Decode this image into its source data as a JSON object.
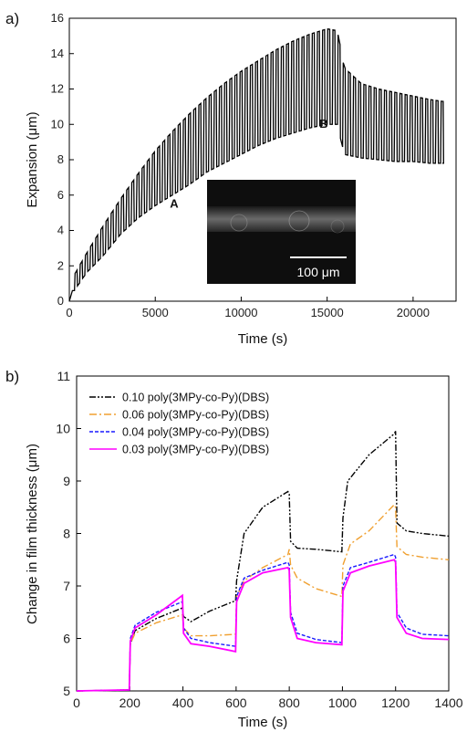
{
  "chart_data": [
    {
      "panel_label": "a)",
      "type": "line",
      "xlabel": "Time (s)",
      "ylabel": "Expansion (μm)",
      "xlim": [
        0,
        22500
      ],
      "ylim": [
        0,
        16
      ],
      "xticks": [
        0,
        5000,
        10000,
        15000,
        20000
      ],
      "yticks": [
        0,
        2,
        4,
        6,
        8,
        10,
        12,
        14,
        16
      ],
      "grid": false,
      "annotations": [
        {
          "text": "A",
          "x": 6100,
          "y": 5.3
        },
        {
          "text": "B",
          "x": 14800,
          "y": 9.8
        }
      ],
      "inset": {
        "scale_bar_label": "100 μm"
      },
      "series": [
        {
          "cycle_period": 300,
          "upper_envelope": [
            [
              300,
              1.5
            ],
            [
              1000,
              2.7
            ],
            [
              2000,
              4.3
            ],
            [
              3000,
              5.8
            ],
            [
              4000,
              7.2
            ],
            [
              5000,
              8.5
            ],
            [
              6000,
              9.6
            ],
            [
              7000,
              10.6
            ],
            [
              8000,
              11.5
            ],
            [
              9000,
              12.3
            ],
            [
              10000,
              13.0
            ],
            [
              11000,
              13.6
            ],
            [
              12000,
              14.2
            ],
            [
              13000,
              14.7
            ],
            [
              14000,
              15.1
            ],
            [
              15000,
              15.4
            ],
            [
              15600,
              15.3
            ],
            [
              16000,
              13.2
            ],
            [
              17000,
              12.3
            ],
            [
              18000,
              12.0
            ],
            [
              19000,
              11.8
            ],
            [
              20000,
              11.6
            ],
            [
              21000,
              11.4
            ],
            [
              21700,
              11.3
            ]
          ],
          "lower_envelope": [
            [
              300,
              0.6
            ],
            [
              1000,
              1.6
            ],
            [
              2000,
              2.6
            ],
            [
              3000,
              3.8
            ],
            [
              4000,
              4.7
            ],
            [
              5000,
              5.4
            ],
            [
              6000,
              6.0
            ],
            [
              7000,
              6.6
            ],
            [
              8000,
              7.3
            ],
            [
              9000,
              7.8
            ],
            [
              10000,
              8.3
            ],
            [
              11000,
              8.8
            ],
            [
              12000,
              9.2
            ],
            [
              13000,
              9.5
            ],
            [
              14000,
              9.8
            ],
            [
              15000,
              10.0
            ],
            [
              15600,
              10.0
            ],
            [
              16000,
              8.3
            ],
            [
              17000,
              8.1
            ],
            [
              18000,
              8.0
            ],
            [
              19000,
              7.9
            ],
            [
              20000,
              7.9
            ],
            [
              21000,
              7.8
            ],
            [
              21700,
              7.8
            ]
          ]
        }
      ]
    },
    {
      "panel_label": "b)",
      "type": "line",
      "xlabel": "Time (s)",
      "ylabel": "Change in film thickness (μm)",
      "xlim": [
        0,
        1400
      ],
      "ylim": [
        5,
        11
      ],
      "xticks": [
        0,
        200,
        400,
        600,
        800,
        1000,
        1200,
        1400
      ],
      "yticks": [
        5,
        6,
        7,
        8,
        9,
        10,
        11
      ],
      "grid": false,
      "legend": "top-left",
      "series": [
        {
          "name": "0.10 poly(3MPy-co-Py)(DBS)",
          "color": "#000000",
          "dash": "dashdot",
          "points": [
            [
              0,
              5.0
            ],
            [
              198,
              5.02
            ],
            [
              202,
              5.9
            ],
            [
              220,
              6.15
            ],
            [
              300,
              6.38
            ],
            [
              398,
              6.58
            ],
            [
              402,
              6.42
            ],
            [
              430,
              6.32
            ],
            [
              500,
              6.52
            ],
            [
              598,
              6.72
            ],
            [
              602,
              7.1
            ],
            [
              630,
              8.0
            ],
            [
              700,
              8.5
            ],
            [
              795,
              8.8
            ],
            [
              800,
              8.75
            ],
            [
              805,
              7.85
            ],
            [
              830,
              7.72
            ],
            [
              900,
              7.7
            ],
            [
              998,
              7.65
            ],
            [
              1002,
              8.3
            ],
            [
              1020,
              9.0
            ],
            [
              1100,
              9.5
            ],
            [
              1195,
              9.9
            ],
            [
              1200,
              9.95
            ],
            [
              1205,
              8.2
            ],
            [
              1240,
              8.05
            ],
            [
              1300,
              8.0
            ],
            [
              1400,
              7.95
            ]
          ]
        },
        {
          "name": "0.06 poly(3MPy-co-Py)(DBS)",
          "color": "#f0a030",
          "dash": "dashdotlong",
          "points": [
            [
              0,
              5.0
            ],
            [
              198,
              5.02
            ],
            [
              202,
              5.9
            ],
            [
              220,
              6.1
            ],
            [
              300,
              6.3
            ],
            [
              398,
              6.45
            ],
            [
              402,
              6.2
            ],
            [
              430,
              6.05
            ],
            [
              500,
              6.05
            ],
            [
              598,
              6.08
            ],
            [
              602,
              6.8
            ],
            [
              630,
              7.1
            ],
            [
              700,
              7.35
            ],
            [
              795,
              7.6
            ],
            [
              800,
              7.7
            ],
            [
              805,
              7.4
            ],
            [
              830,
              7.15
            ],
            [
              900,
              6.95
            ],
            [
              998,
              6.8
            ],
            [
              1002,
              7.4
            ],
            [
              1030,
              7.8
            ],
            [
              1100,
              8.05
            ],
            [
              1195,
              8.55
            ],
            [
              1200,
              8.5
            ],
            [
              1205,
              7.75
            ],
            [
              1240,
              7.6
            ],
            [
              1300,
              7.55
            ],
            [
              1400,
              7.5
            ]
          ]
        },
        {
          "name": "0.04 poly(3MPy-co-Py)(DBS)",
          "color": "#1a1aff",
          "dash": "dash",
          "points": [
            [
              0,
              5.0
            ],
            [
              198,
              5.02
            ],
            [
              202,
              6.0
            ],
            [
              220,
              6.25
            ],
            [
              300,
              6.5
            ],
            [
              398,
              6.7
            ],
            [
              402,
              6.2
            ],
            [
              430,
              6.0
            ],
            [
              500,
              5.92
            ],
            [
              598,
              5.85
            ],
            [
              602,
              6.8
            ],
            [
              630,
              7.15
            ],
            [
              700,
              7.3
            ],
            [
              795,
              7.45
            ],
            [
              800,
              7.4
            ],
            [
              805,
              6.5
            ],
            [
              830,
              6.1
            ],
            [
              900,
              5.98
            ],
            [
              998,
              5.92
            ],
            [
              1002,
              7.0
            ],
            [
              1030,
              7.35
            ],
            [
              1100,
              7.45
            ],
            [
              1195,
              7.6
            ],
            [
              1200,
              7.55
            ],
            [
              1205,
              6.5
            ],
            [
              1240,
              6.2
            ],
            [
              1300,
              6.08
            ],
            [
              1400,
              6.05
            ]
          ]
        },
        {
          "name": "0.03 poly(3MPy-co-Py)(DBS)",
          "color": "#ff00ff",
          "dash": "solid",
          "points": [
            [
              0,
              5.0
            ],
            [
              198,
              5.02
            ],
            [
              202,
              5.95
            ],
            [
              220,
              6.2
            ],
            [
              300,
              6.45
            ],
            [
              398,
              6.82
            ],
            [
              402,
              6.1
            ],
            [
              430,
              5.9
            ],
            [
              500,
              5.85
            ],
            [
              598,
              5.75
            ],
            [
              602,
              6.7
            ],
            [
              630,
              7.05
            ],
            [
              700,
              7.25
            ],
            [
              795,
              7.35
            ],
            [
              800,
              7.3
            ],
            [
              805,
              6.4
            ],
            [
              830,
              6.0
            ],
            [
              900,
              5.92
            ],
            [
              998,
              5.88
            ],
            [
              1002,
              6.9
            ],
            [
              1030,
              7.25
            ],
            [
              1100,
              7.38
            ],
            [
              1195,
              7.5
            ],
            [
              1200,
              7.45
            ],
            [
              1205,
              6.4
            ],
            [
              1240,
              6.1
            ],
            [
              1300,
              6.0
            ],
            [
              1400,
              5.98
            ]
          ]
        }
      ]
    }
  ]
}
